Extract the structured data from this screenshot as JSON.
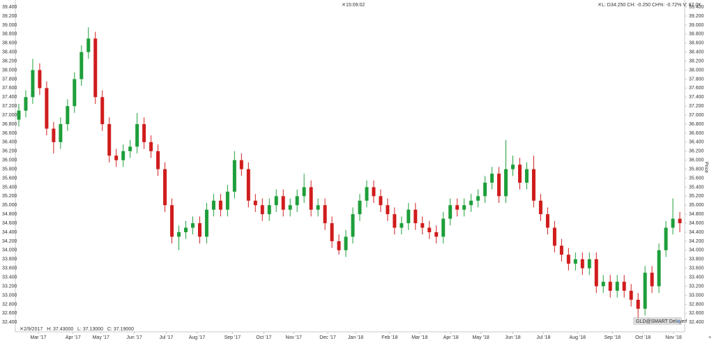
{
  "chart_data": {
    "type": "candlestick",
    "ylabel": "Price",
    "annotations": {
      "time": "15:09:02",
      "quote": "L: D34.250 CH: -0.250 CH%: -0.72% V: 87.0K",
      "hover": "2/9/2017   H: 37.43000   L: 37.13000   C: 37.19000",
      "badge": "GLD@SMART Delayed"
    },
    "up_color": "#1e9e3a",
    "down_color": "#d01c1c",
    "grid": false,
    "xlim": [
      0,
      96
    ],
    "xticks": [
      {
        "value": 3.3,
        "label": "Mar '17"
      },
      {
        "value": 8.3,
        "label": "Apr '17"
      },
      {
        "value": 12.3,
        "label": "May '17"
      },
      {
        "value": 17.1,
        "label": "Jun '17"
      },
      {
        "value": 21.7,
        "label": "Jul '17"
      },
      {
        "value": 26.1,
        "label": "Aug '17"
      },
      {
        "value": 31.2,
        "label": "Sep '17"
      },
      {
        "value": 35.7,
        "label": "Oct '17"
      },
      {
        "value": 40.0,
        "label": "Nov '17"
      },
      {
        "value": 44.9,
        "label": "Dec '17"
      },
      {
        "value": 48.9,
        "label": "Jan '18"
      },
      {
        "value": 53.8,
        "label": "Feb '18"
      },
      {
        "value": 58.1,
        "label": "Mar '18"
      },
      {
        "value": 62.6,
        "label": "Apr '18"
      },
      {
        "value": 66.9,
        "label": "May '18"
      },
      {
        "value": 71.5,
        "label": "Jun '18"
      },
      {
        "value": 75.9,
        "label": "Jul '18"
      },
      {
        "value": 80.8,
        "label": "Aug '18"
      },
      {
        "value": 85.8,
        "label": "Sep '18"
      },
      {
        "value": 90.2,
        "label": "Oct '18"
      },
      {
        "value": 94.6,
        "label": "Nov '18"
      }
    ],
    "ylim": [
      32.28,
      39.51
    ],
    "yticks": [
      {
        "value": 32.4,
        "label": "32.400"
      },
      {
        "value": 32.6,
        "label": "32.600"
      },
      {
        "value": 32.8,
        "label": "32.800"
      },
      {
        "value": 33.0,
        "label": "33.000"
      },
      {
        "value": 33.2,
        "label": "33.200"
      },
      {
        "value": 33.4,
        "label": "33.400"
      },
      {
        "value": 33.6,
        "label": "33.600"
      },
      {
        "value": 33.8,
        "label": "33.800"
      },
      {
        "value": 34.0,
        "label": "34.000"
      },
      {
        "value": 34.2,
        "label": "34.200"
      },
      {
        "value": 34.4,
        "label": "34.400"
      },
      {
        "value": 34.6,
        "label": "34.600"
      },
      {
        "value": 34.8,
        "label": "34.800"
      },
      {
        "value": 35.0,
        "label": "35.000"
      },
      {
        "value": 35.2,
        "label": "35.200"
      },
      {
        "value": 35.4,
        "label": "35.400"
      },
      {
        "value": 35.6,
        "label": "35.600"
      },
      {
        "value": 35.8,
        "label": "35.800"
      },
      {
        "value": 36.0,
        "label": "36.000"
      },
      {
        "value": 36.2,
        "label": "36.200"
      },
      {
        "value": 36.4,
        "label": "36.400"
      },
      {
        "value": 36.6,
        "label": "36.600"
      },
      {
        "value": 36.8,
        "label": "36.800"
      },
      {
        "value": 37.0,
        "label": "37.000"
      },
      {
        "value": 37.2,
        "label": "37.200"
      },
      {
        "value": 37.4,
        "label": "37.400"
      },
      {
        "value": 37.6,
        "label": "37.600"
      },
      {
        "value": 37.8,
        "label": "37.800"
      },
      {
        "value": 38.0,
        "label": "38.000"
      },
      {
        "value": 38.2,
        "label": "38.200"
      },
      {
        "value": 38.4,
        "label": "38.400"
      },
      {
        "value": 38.6,
        "label": "38.600"
      },
      {
        "value": 38.8,
        "label": "38.800"
      },
      {
        "value": 39.0,
        "label": "39.000"
      },
      {
        "value": 39.2,
        "label": "39.200"
      },
      {
        "value": 39.4,
        "label": "39.400"
      }
    ],
    "open": [
      36.9,
      37.1,
      37.4,
      38.0,
      37.6,
      36.7,
      36.4,
      36.8,
      37.2,
      37.8,
      38.4,
      38.7,
      37.4,
      36.8,
      36.1,
      36.0,
      36.2,
      36.3,
      36.8,
      36.4,
      36.2,
      35.8,
      35.0,
      34.3,
      34.4,
      34.5,
      34.6,
      34.3,
      34.9,
      35.1,
      34.9,
      35.3,
      36.0,
      35.8,
      35.1,
      35.0,
      34.8,
      35.0,
      35.2,
      34.9,
      35.0,
      35.2,
      35.4,
      34.9,
      35.0,
      34.6,
      34.2,
      34.0,
      34.3,
      34.8,
      35.1,
      35.4,
      35.2,
      35.0,
      34.8,
      34.5,
      34.6,
      34.9,
      34.6,
      34.5,
      34.4,
      34.3,
      34.7,
      35.0,
      34.9,
      35.0,
      35.1,
      35.2,
      35.5,
      35.7,
      35.2,
      35.8,
      35.9,
      35.5,
      35.8,
      35.1,
      34.8,
      34.5,
      34.1,
      33.9,
      33.7,
      33.8,
      33.6,
      33.8,
      33.2,
      33.3,
      33.1,
      33.3,
      33.1,
      32.9,
      32.7,
      33.5,
      33.2,
      34.0,
      34.5,
      34.7
    ],
    "high": [
      37.25,
      37.55,
      38.25,
      38.15,
      37.75,
      36.85,
      36.95,
      37.35,
      37.95,
      38.55,
      38.95,
      38.85,
      37.55,
      36.95,
      36.25,
      36.35,
      36.45,
      37.05,
      36.95,
      36.55,
      36.35,
      35.95,
      35.15,
      34.55,
      34.65,
      34.75,
      34.75,
      35.05,
      35.25,
      35.25,
      35.45,
      36.2,
      36.15,
      35.95,
      35.25,
      35.15,
      35.15,
      35.35,
      35.35,
      35.15,
      35.35,
      35.7,
      35.55,
      35.15,
      35.15,
      34.75,
      34.35,
      34.45,
      34.95,
      35.25,
      35.55,
      35.55,
      35.35,
      35.15,
      34.95,
      34.75,
      35.05,
      35.05,
      34.75,
      34.65,
      34.55,
      34.85,
      35.15,
      35.15,
      35.15,
      35.25,
      35.35,
      35.65,
      35.85,
      35.85,
      36.45,
      36.1,
      36.05,
      35.95,
      36.1,
      35.25,
      34.95,
      34.65,
      34.25,
      34.05,
      33.95,
      33.95,
      33.95,
      33.95,
      33.45,
      33.45,
      33.45,
      33.45,
      33.25,
      33.05,
      33.65,
      33.65,
      34.15,
      34.65,
      35.15,
      34.85
    ],
    "low": [
      36.75,
      36.95,
      37.25,
      37.45,
      36.55,
      36.15,
      36.25,
      36.65,
      37.05,
      37.65,
      38.25,
      37.25,
      36.65,
      35.95,
      35.85,
      35.85,
      36.05,
      36.15,
      36.25,
      36.05,
      35.65,
      34.85,
      34.15,
      34.0,
      34.25,
      34.35,
      34.15,
      34.15,
      34.75,
      34.75,
      34.75,
      35.15,
      35.65,
      34.95,
      34.85,
      34.65,
      34.65,
      34.85,
      34.75,
      34.75,
      34.85,
      35.05,
      34.75,
      34.75,
      34.45,
      34.05,
      33.9,
      33.85,
      34.15,
      34.65,
      34.95,
      35.05,
      34.85,
      34.65,
      34.35,
      34.35,
      34.45,
      34.45,
      34.35,
      34.25,
      34.15,
      34.15,
      34.55,
      34.75,
      34.75,
      34.85,
      34.95,
      35.05,
      35.35,
      35.05,
      35.05,
      35.65,
      35.35,
      35.35,
      34.95,
      34.65,
      34.35,
      33.95,
      33.75,
      33.55,
      33.55,
      33.45,
      33.45,
      33.05,
      33.05,
      32.95,
      32.95,
      32.95,
      32.75,
      32.5,
      32.55,
      33.05,
      33.05,
      33.85,
      34.35,
      34.4
    ],
    "close": [
      37.1,
      37.4,
      38.0,
      37.6,
      36.7,
      36.4,
      36.8,
      37.2,
      37.8,
      38.4,
      38.7,
      37.4,
      36.8,
      36.1,
      36.0,
      36.2,
      36.3,
      36.8,
      36.4,
      36.2,
      35.8,
      35.0,
      34.3,
      34.4,
      34.5,
      34.6,
      34.3,
      34.9,
      35.1,
      34.9,
      35.3,
      36.0,
      35.8,
      35.1,
      35.0,
      34.8,
      35.0,
      35.2,
      34.9,
      35.0,
      35.2,
      35.4,
      34.9,
      35.0,
      34.6,
      34.2,
      34.0,
      34.3,
      34.8,
      35.1,
      35.4,
      35.2,
      35.0,
      34.8,
      34.5,
      34.6,
      34.9,
      34.6,
      34.5,
      34.4,
      34.3,
      34.7,
      35.0,
      34.9,
      35.0,
      35.1,
      35.2,
      35.5,
      35.7,
      35.2,
      35.8,
      35.9,
      35.5,
      35.8,
      35.1,
      34.8,
      34.5,
      34.1,
      33.9,
      33.7,
      33.8,
      33.6,
      33.8,
      33.2,
      33.3,
      33.1,
      33.3,
      33.1,
      32.9,
      32.7,
      33.5,
      33.2,
      34.0,
      34.5,
      34.7,
      34.6
    ]
  }
}
